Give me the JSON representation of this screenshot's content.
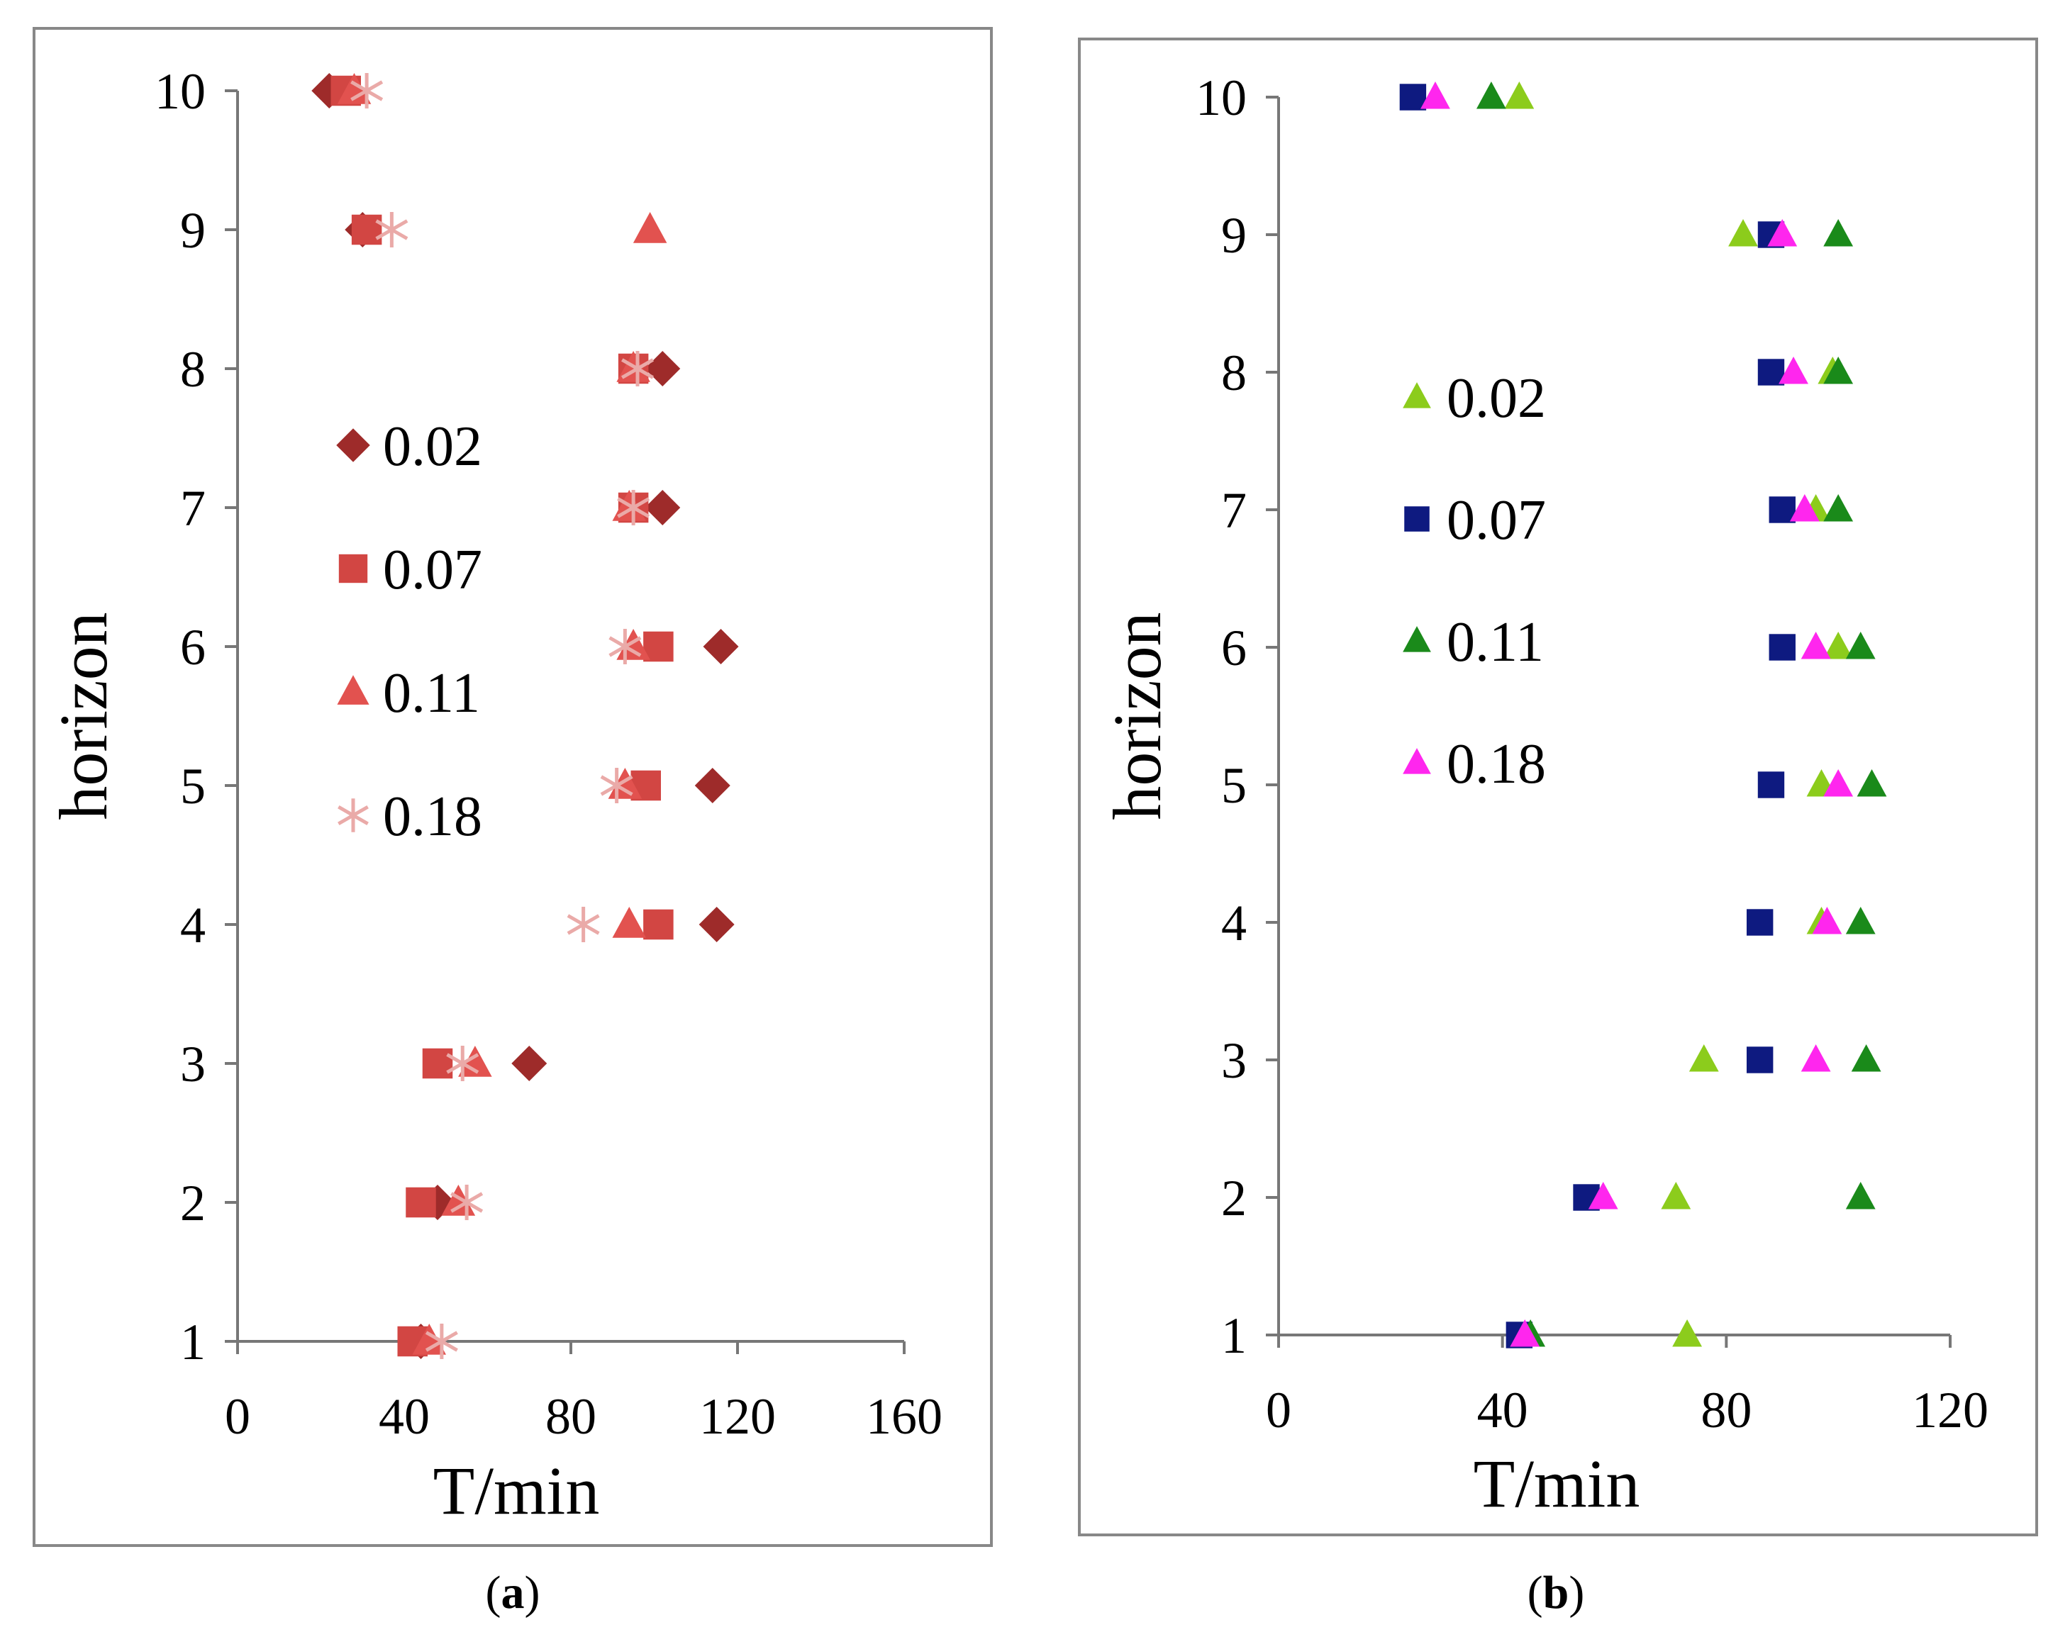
{
  "chart_data": [
    {
      "panel": "a",
      "type": "scatter",
      "caption": "a",
      "xlabel": "T/min",
      "ylabel": "horizon",
      "xlim": [
        0,
        160
      ],
      "ylim": [
        1,
        10
      ],
      "xticks": [
        0,
        40,
        80,
        120,
        160
      ],
      "yticks": [
        1,
        2,
        3,
        4,
        5,
        6,
        7,
        8,
        9,
        10
      ],
      "grid": false,
      "legend_position": "middle-left",
      "series": [
        {
          "name": "0.02",
          "marker": "diamond",
          "color": "#9e2b2a",
          "points": [
            [
              44,
              1
            ],
            [
              48,
              2
            ],
            [
              70,
              3
            ],
            [
              115,
              4
            ],
            [
              114,
              5
            ],
            [
              116,
              6
            ],
            [
              102,
              7
            ],
            [
              102,
              8
            ],
            [
              30,
              9
            ],
            [
              22,
              10
            ]
          ]
        },
        {
          "name": "0.07",
          "marker": "square",
          "color": "#d24643",
          "points": [
            [
              42,
              1
            ],
            [
              44,
              2
            ],
            [
              48,
              3
            ],
            [
              101,
              4
            ],
            [
              98,
              5
            ],
            [
              101,
              6
            ],
            [
              95,
              7
            ],
            [
              95,
              8
            ],
            [
              31,
              9
            ],
            [
              26,
              10
            ]
          ]
        },
        {
          "name": "0.11",
          "marker": "triangle",
          "color": "#e2524f",
          "points": [
            [
              46,
              1
            ],
            [
              53,
              2
            ],
            [
              57,
              3
            ],
            [
              94,
              4
            ],
            [
              93,
              5
            ],
            [
              95,
              6
            ],
            [
              94,
              7
            ],
            [
              95,
              8
            ],
            [
              99,
              9
            ],
            [
              28,
              10
            ]
          ]
        },
        {
          "name": "0.18",
          "marker": "asterisk",
          "color": "#eaaaa8",
          "points": [
            [
              49,
              1
            ],
            [
              55,
              2
            ],
            [
              54,
              3
            ],
            [
              83,
              4
            ],
            [
              91,
              5
            ],
            [
              93,
              6
            ],
            [
              95,
              7
            ],
            [
              96,
              8
            ],
            [
              37,
              9
            ],
            [
              31,
              10
            ]
          ]
        }
      ]
    },
    {
      "panel": "b",
      "type": "scatter",
      "caption": "b",
      "xlabel": "T/min",
      "ylabel": "horizon",
      "xlim": [
        0,
        120
      ],
      "ylim": [
        1,
        10
      ],
      "xticks": [
        0,
        40,
        80,
        120
      ],
      "yticks": [
        1,
        2,
        3,
        4,
        5,
        6,
        7,
        8,
        9,
        10
      ],
      "grid": false,
      "legend_position": "middle-left",
      "series": [
        {
          "name": "0.02",
          "marker": "triangle",
          "color": "#8ccc1c",
          "points": [
            [
              73,
              1
            ],
            [
              71,
              2
            ],
            [
              76,
              3
            ],
            [
              97,
              4
            ],
            [
              97,
              5
            ],
            [
              100,
              6
            ],
            [
              96,
              7
            ],
            [
              99,
              8
            ],
            [
              83,
              9
            ],
            [
              43,
              10
            ]
          ]
        },
        {
          "name": "0.07",
          "marker": "square",
          "color": "#0e1a80",
          "points": [
            [
              43,
              1
            ],
            [
              55,
              2
            ],
            [
              86,
              3
            ],
            [
              86,
              4
            ],
            [
              88,
              5
            ],
            [
              90,
              6
            ],
            [
              90,
              7
            ],
            [
              88,
              8
            ],
            [
              88,
              9
            ],
            [
              24,
              10
            ]
          ]
        },
        {
          "name": "0.11",
          "marker": "triangle",
          "color": "#1a8a1a",
          "points": [
            [
              45,
              1
            ],
            [
              104,
              2
            ],
            [
              105,
              3
            ],
            [
              104,
              4
            ],
            [
              106,
              5
            ],
            [
              104,
              6
            ],
            [
              100,
              7
            ],
            [
              100,
              8
            ],
            [
              100,
              9
            ],
            [
              38,
              10
            ]
          ]
        },
        {
          "name": "0.18",
          "marker": "triangle",
          "color": "#ff26ee",
          "points": [
            [
              44,
              1
            ],
            [
              58,
              2
            ],
            [
              96,
              3
            ],
            [
              98,
              4
            ],
            [
              100,
              5
            ],
            [
              96,
              6
            ],
            [
              94,
              7
            ],
            [
              92,
              8
            ],
            [
              90,
              9
            ],
            [
              28,
              10
            ]
          ]
        }
      ]
    }
  ]
}
